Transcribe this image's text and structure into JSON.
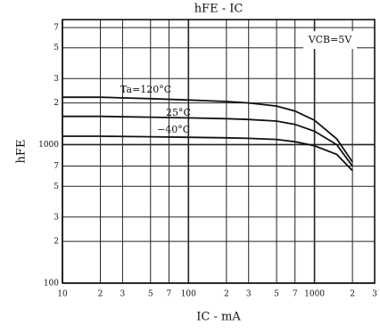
{
  "chart_data": {
    "type": "line",
    "title": "hFE - IC",
    "xlabel": "IC - mA",
    "ylabel": "hFE",
    "log_x": true,
    "log_y": true,
    "grid": true,
    "xlim": [
      10,
      3000
    ],
    "ylim": [
      100,
      8000
    ],
    "xticks": [
      10,
      {
        "value": 20,
        "label": "2"
      },
      {
        "value": 30,
        "label": "3"
      },
      {
        "value": 50,
        "label": "5"
      },
      {
        "value": 70,
        "label": "7"
      },
      100,
      {
        "value": 200,
        "label": "2"
      },
      {
        "value": 300,
        "label": "3"
      },
      {
        "value": 500,
        "label": "5"
      },
      {
        "value": 700,
        "label": "7"
      },
      1000,
      {
        "value": 2000,
        "label": "2"
      },
      {
        "value": 3000,
        "label": "3"
      }
    ],
    "yticks": [
      100,
      {
        "value": 200,
        "label": "2"
      },
      {
        "value": 300,
        "label": "3"
      },
      {
        "value": 500,
        "label": "5"
      },
      {
        "value": 700,
        "label": "7"
      },
      1000,
      {
        "value": 2000,
        "label": "2"
      },
      {
        "value": 3000,
        "label": "3"
      },
      {
        "value": 5000,
        "label": "5"
      },
      {
        "value": 7000,
        "label": "7"
      }
    ],
    "x": [
      10,
      20,
      50,
      100,
      200,
      300,
      500,
      700,
      1000,
      1500,
      2000
    ],
    "series": [
      {
        "color": "#111111",
        "values": [
          2200,
          2200,
          2150,
          2100,
          2050,
          2000,
          1900,
          1750,
          1500,
          1100,
          750
        ]
      },
      {
        "color": "#111111",
        "values": [
          1600,
          1600,
          1580,
          1560,
          1540,
          1520,
          1480,
          1400,
          1250,
          1000,
          700
        ]
      },
      {
        "color": "#111111",
        "values": [
          1150,
          1150,
          1140,
          1130,
          1120,
          1110,
          1090,
          1050,
          980,
          850,
          650
        ]
      }
    ],
    "annotations": [
      "Ta=120°C",
      "25°C",
      "−40°C",
      "VCB=5V"
    ]
  }
}
